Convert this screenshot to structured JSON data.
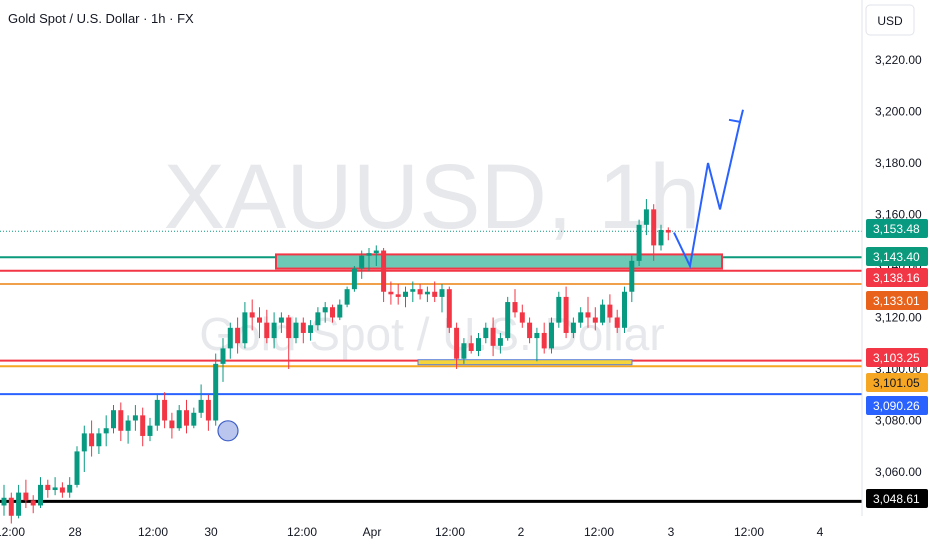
{
  "header": {
    "symbol_title": "Gold Spot / U.S. Dollar · 1h · FX"
  },
  "watermark": {
    "ticker": "XAUUSD, 1h",
    "name": "Gold Spot / U.S. Dollar"
  },
  "currency_button": {
    "label": "USD"
  },
  "colors": {
    "up": "#089981",
    "down": "#f23645",
    "green_line": "#0b9a7c",
    "red_line": "#f23645",
    "orange_line": "#f0a04a",
    "blue_line": "#2962ff",
    "black_line": "#000000",
    "zone_fill": "#6cc9b6",
    "yellow_zone": "#f5d33b",
    "arrow": "#2962ff"
  },
  "chart_data": {
    "type": "candlestick",
    "title": "Gold Spot / U.S. Dollar · 1h · FX",
    "ylim": [
      3040,
      3236
    ],
    "y_ticks": [
      "3,220.00",
      "3,200.00",
      "3,180.00",
      "3,160.00",
      "3,140.00",
      "3,120.00",
      "3,100.00",
      "3,080.00",
      "3,060.00"
    ],
    "y_tick_values": [
      3220,
      3200,
      3180,
      3160,
      3140,
      3120,
      3100,
      3080,
      3060
    ],
    "x_ticks": [
      "12:00",
      "28",
      "12:00",
      "30",
      "12:00",
      "Apr",
      "12:00",
      "2",
      "12:00",
      "3",
      "12:00",
      "4"
    ],
    "candles": [
      [
        3047,
        3055,
        3043,
        3050
      ],
      [
        3050,
        3052,
        3040,
        3043
      ],
      [
        3043,
        3055,
        3042,
        3052
      ],
      [
        3052,
        3057,
        3046,
        3049
      ],
      [
        3049,
        3051,
        3044,
        3047
      ],
      [
        3047,
        3058,
        3046,
        3055
      ],
      [
        3055,
        3057,
        3050,
        3053
      ],
      [
        3053,
        3058,
        3051,
        3054
      ],
      [
        3054,
        3056,
        3050,
        3052
      ],
      [
        3052,
        3058,
        3050,
        3055
      ],
      [
        3055,
        3070,
        3054,
        3068
      ],
      [
        3068,
        3078,
        3060,
        3075
      ],
      [
        3075,
        3080,
        3066,
        3070
      ],
      [
        3070,
        3077,
        3067,
        3075
      ],
      [
        3075,
        3082,
        3070,
        3077
      ],
      [
        3077,
        3086,
        3075,
        3084
      ],
      [
        3084,
        3087,
        3072,
        3076
      ],
      [
        3076,
        3082,
        3071,
        3080
      ],
      [
        3080,
        3086,
        3076,
        3082
      ],
      [
        3082,
        3085,
        3070,
        3074
      ],
      [
        3074,
        3081,
        3072,
        3078
      ],
      [
        3078,
        3090,
        3076,
        3088
      ],
      [
        3088,
        3091,
        3077,
        3080
      ],
      [
        3080,
        3083,
        3073,
        3077
      ],
      [
        3077,
        3086,
        3076,
        3084
      ],
      [
        3084,
        3088,
        3075,
        3078
      ],
      [
        3078,
        3085,
        3077,
        3083
      ],
      [
        3083,
        3094,
        3081,
        3088
      ],
      [
        3088,
        3090,
        3076,
        3080
      ],
      [
        3080,
        3106,
        3078,
        3102
      ],
      [
        3102,
        3112,
        3095,
        3108
      ],
      [
        3108,
        3118,
        3104,
        3116
      ],
      [
        3116,
        3120,
        3106,
        3110
      ],
      [
        3110,
        3126,
        3108,
        3122
      ],
      [
        3122,
        3127,
        3115,
        3120
      ],
      [
        3120,
        3124,
        3112,
        3118
      ],
      [
        3118,
        3123,
        3110,
        3112
      ],
      [
        3112,
        3122,
        3108,
        3118
      ],
      [
        3118,
        3122,
        3114,
        3120
      ],
      [
        3120,
        3121,
        3100,
        3112
      ],
      [
        3112,
        3120,
        3110,
        3118
      ],
      [
        3118,
        3120,
        3110,
        3114
      ],
      [
        3114,
        3119,
        3111,
        3117
      ],
      [
        3117,
        3124,
        3115,
        3122
      ],
      [
        3122,
        3126,
        3118,
        3124
      ],
      [
        3124,
        3125,
        3118,
        3120
      ],
      [
        3120,
        3127,
        3119,
        3125
      ],
      [
        3125,
        3132,
        3124,
        3131
      ],
      [
        3131,
        3140,
        3130,
        3139
      ],
      [
        3139,
        3146,
        3135,
        3144
      ],
      [
        3144,
        3147,
        3138,
        3145
      ],
      [
        3145,
        3148,
        3140,
        3146
      ],
      [
        3146,
        3147,
        3126,
        3130
      ],
      [
        3130,
        3134,
        3125,
        3129
      ],
      [
        3129,
        3133,
        3125,
        3128
      ],
      [
        3128,
        3132,
        3124,
        3130
      ],
      [
        3130,
        3134,
        3126,
        3131
      ],
      [
        3131,
        3133,
        3127,
        3129
      ],
      [
        3129,
        3132,
        3126,
        3130
      ],
      [
        3130,
        3134,
        3126,
        3128
      ],
      [
        3128,
        3133,
        3122,
        3131
      ],
      [
        3131,
        3132,
        3114,
        3116
      ],
      [
        3116,
        3118,
        3100,
        3104
      ],
      [
        3104,
        3112,
        3102,
        3110
      ],
      [
        3110,
        3113,
        3106,
        3107
      ],
      [
        3107,
        3114,
        3105,
        3112
      ],
      [
        3112,
        3118,
        3110,
        3116
      ],
      [
        3116,
        3120,
        3105,
        3109
      ],
      [
        3109,
        3114,
        3106,
        3112
      ],
      [
        3112,
        3128,
        3111,
        3126
      ],
      [
        3126,
        3131,
        3120,
        3122
      ],
      [
        3122,
        3125,
        3116,
        3118
      ],
      [
        3118,
        3120,
        3110,
        3112
      ],
      [
        3112,
        3116,
        3103,
        3114
      ],
      [
        3114,
        3118,
        3106,
        3108
      ],
      [
        3108,
        3120,
        3106,
        3118
      ],
      [
        3118,
        3130,
        3116,
        3128
      ],
      [
        3128,
        3132,
        3112,
        3114
      ],
      [
        3114,
        3120,
        3112,
        3118
      ],
      [
        3118,
        3124,
        3116,
        3122
      ],
      [
        3122,
        3128,
        3116,
        3120
      ],
      [
        3120,
        3124,
        3115,
        3118
      ],
      [
        3118,
        3127,
        3117,
        3125
      ],
      [
        3125,
        3129,
        3118,
        3120
      ],
      [
        3120,
        3123,
        3114,
        3116
      ],
      [
        3116,
        3132,
        3114,
        3130
      ],
      [
        3130,
        3144,
        3126,
        3142
      ],
      [
        3142,
        3158,
        3140,
        3156
      ],
      [
        3156,
        3166,
        3152,
        3162
      ],
      [
        3162,
        3164,
        3142,
        3148
      ],
      [
        3148,
        3156,
        3146,
        3154
      ],
      [
        3154,
        3155,
        3150,
        3153
      ]
    ],
    "horizontal_levels": [
      {
        "price": 3153.48,
        "label": "3,153.48",
        "style": "dotted",
        "color": "#089981"
      },
      {
        "price": 3143.4,
        "label": "3,143.40",
        "style": "solid",
        "color": "#0b9a7c"
      },
      {
        "price": 3138.16,
        "label": "3,138.16",
        "style": "solid",
        "color": "#f23645"
      },
      {
        "price": 3133.01,
        "label": "3,133.01",
        "style": "solid",
        "color": "#f0a04a"
      },
      {
        "price": 3103.25,
        "label": "3,103.25",
        "style": "solid",
        "color": "#f23645"
      },
      {
        "price": 3101.05,
        "label": "3,101.05",
        "style": "solid",
        "color": "#f5a623"
      },
      {
        "price": 3090.26,
        "label": "3,090.26",
        "style": "solid",
        "color": "#2962ff"
      },
      {
        "price": 3048.61,
        "label": "3,048.61",
        "style": "solid",
        "color": "#000000"
      }
    ],
    "zones": [
      {
        "name": "resistance-zone",
        "from_price": 3139,
        "to_price": 3144.5
      },
      {
        "name": "support-zone",
        "from_price": 3102,
        "to_price": 3104
      }
    ],
    "projection_path": [
      [
        3153,
        3153
      ],
      [
        3156,
        3140
      ],
      [
        3160,
        3180
      ],
      [
        3163,
        3162
      ],
      [
        3166,
        3196
      ]
    ],
    "marker": {
      "price": 3076
    }
  }
}
